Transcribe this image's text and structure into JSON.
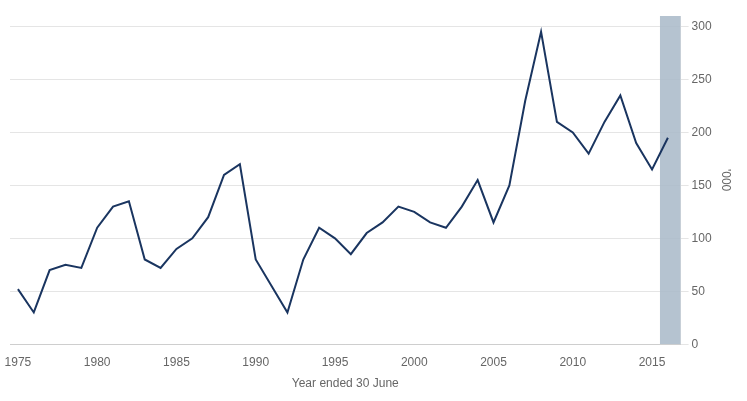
{
  "chart_data": {
    "type": "line",
    "x": [
      1975,
      1976,
      1977,
      1978,
      1979,
      1980,
      1981,
      1982,
      1983,
      1984,
      1985,
      1986,
      1987,
      1988,
      1989,
      1990,
      1991,
      1992,
      1993,
      1994,
      1995,
      1996,
      1997,
      1998,
      1999,
      2000,
      2001,
      2002,
      2003,
      2004,
      2005,
      2006,
      2007,
      2008,
      2009,
      2010,
      2011,
      2012,
      2013,
      2014,
      2015,
      2016
    ],
    "values": [
      52,
      30,
      70,
      75,
      72,
      110,
      130,
      135,
      80,
      72,
      90,
      100,
      120,
      160,
      170,
      80,
      55,
      30,
      80,
      110,
      100,
      85,
      105,
      115,
      130,
      125,
      115,
      110,
      130,
      155,
      115,
      150,
      230,
      295,
      210,
      200,
      180,
      210,
      235,
      190,
      165,
      195
    ],
    "color": "#1a3560",
    "xlabel": "Year ended 30 June",
    "ylabel": "'000",
    "xlim": [
      1974.5,
      2016.8
    ],
    "ylim": [
      0,
      310
    ],
    "xticks": [
      1975,
      1980,
      1985,
      1990,
      1995,
      2000,
      2005,
      2010,
      2015
    ],
    "yticks": [
      0,
      50,
      100,
      150,
      200,
      250,
      300
    ],
    "grid": true,
    "bands": [
      {
        "x": [
          2015.5,
          2017.2
        ],
        "color": "#a8b8c8"
      }
    ]
  }
}
